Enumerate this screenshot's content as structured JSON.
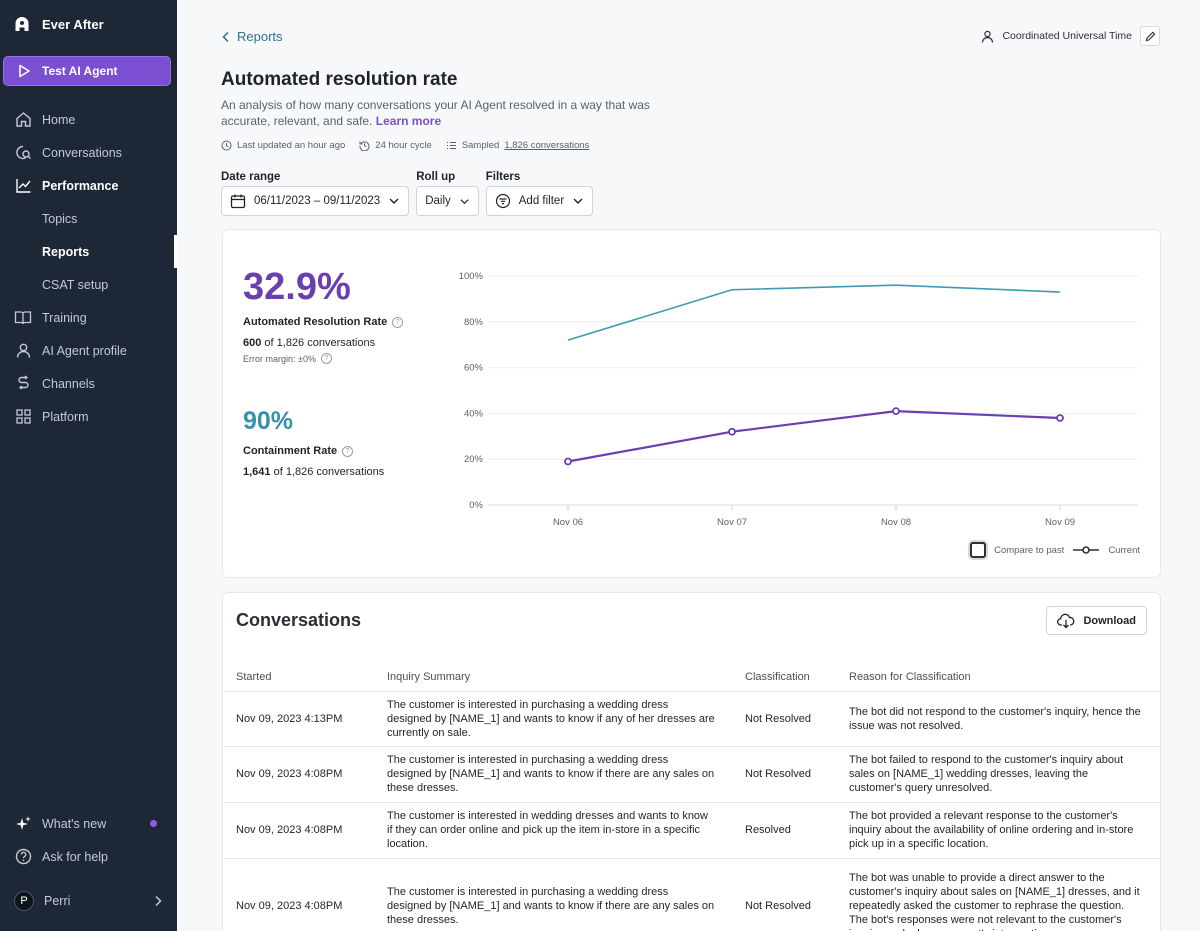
{
  "sidebar": {
    "brand": "Ever After",
    "agent_button": "Test AI Agent",
    "items": [
      {
        "label": "Home",
        "icon": "home-icon"
      },
      {
        "label": "Conversations",
        "icon": "chat-search-icon"
      },
      {
        "label": "Performance",
        "icon": "trend-icon"
      },
      {
        "label": "Topics"
      },
      {
        "label": "Reports"
      },
      {
        "label": "CSAT setup"
      },
      {
        "label": "Training",
        "icon": "book-icon"
      },
      {
        "label": "AI Agent profile",
        "icon": "person-icon"
      },
      {
        "label": "Channels",
        "icon": "channels-icon"
      },
      {
        "label": "Platform",
        "icon": "grid-icon"
      }
    ],
    "bottom": [
      {
        "label": "What's new",
        "icon": "sparkle-icon"
      },
      {
        "label": "Ask for help",
        "icon": "help-icon"
      }
    ],
    "user": {
      "initial": "P",
      "name": "Perri"
    }
  },
  "header": {
    "back_label": "Reports",
    "timezone": "Coordinated Universal Time",
    "title": "Automated resolution rate",
    "description": "An analysis of how many conversations your AI Agent resolved in a way that was accurate, relevant, and safe.",
    "learn_more": "Learn more",
    "meta": {
      "updated": "Last updated an hour ago",
      "cycle": "24 hour cycle",
      "sampled_prefix": "Sampled",
      "sampled_link": "1,826 conversations"
    }
  },
  "filters": {
    "date_range_label": "Date range",
    "date_range_value": "06/11/2023 – 09/11/2023",
    "rollup_label": "Roll up",
    "rollup_value": "Daily",
    "filters_label": "Filters",
    "add_filter": "Add filter"
  },
  "metrics": {
    "resolution": {
      "value": "32.9%",
      "label": "Automated Resolution Rate",
      "count_bold": "600",
      "count_rest": "of 1,826 conversations",
      "error_margin": "Error margin: ±0%"
    },
    "containment": {
      "value": "90%",
      "label": "Containment Rate",
      "count_bold": "1,641",
      "count_rest": "of 1,826 conversations"
    },
    "legend": {
      "compare": "Compare to past",
      "current": "Current"
    }
  },
  "chart_data": {
    "type": "line",
    "categories": [
      "Nov 06",
      "Nov 07",
      "Nov 08",
      "Nov 09"
    ],
    "y_ticks": [
      "0%",
      "20%",
      "40%",
      "60%",
      "80%",
      "100%"
    ],
    "ylim": [
      0,
      100
    ],
    "series": [
      {
        "name": "",
        "values": [
          72,
          94,
          96,
          93
        ],
        "color": "#3e9bb3"
      },
      {
        "name": "Current",
        "values": [
          19,
          32,
          41,
          38
        ],
        "color": "#6a3fb0"
      }
    ],
    "grid": true,
    "legend": "bottom-right"
  },
  "conversations": {
    "title": "Conversations",
    "download": "Download",
    "columns": [
      "Started",
      "Inquiry Summary",
      "Classification",
      "Reason for Classification"
    ],
    "rows": [
      {
        "started": "Nov 09, 2023 4:13PM",
        "summary": "The customer is interested in purchasing a wedding dress designed by [NAME_1] and wants to know if any of her dresses are currently on sale.",
        "classification": "Not Resolved",
        "reason": "The bot did not respond to the customer's inquiry, hence the issue was not resolved."
      },
      {
        "started": "Nov 09, 2023 4:08PM",
        "summary": "The customer is interested in purchasing a wedding dress designed by [NAME_1] and wants to know if there are any sales on these dresses.",
        "classification": "Not Resolved",
        "reason": "The bot failed to respond to the customer's inquiry about sales on [NAME_1] wedding dresses, leaving the customer's query unresolved."
      },
      {
        "started": "Nov 09, 2023 4:08PM",
        "summary": "The customer is interested in wedding dresses and wants to know if they can order online and pick up the item in-store in a specific location.",
        "classification": "Resolved",
        "reason": "The bot provided a relevant response to the customer's inquiry about the availability of online ordering and in-store pick up in a specific location."
      },
      {
        "started": "Nov 09, 2023 4:08PM",
        "summary": "The customer is interested in purchasing a wedding dress designed by [NAME_1] and wants to know if there are any sales on these dresses.",
        "classification": "Not Resolved",
        "reason": "The bot was unable to provide a direct answer to the customer's inquiry about sales on [NAME_1] dresses, and it repeatedly asked the customer to rephrase the question. The bot's responses were not relevant to the customer's inquiry, and a human agent's intervention"
      }
    ]
  }
}
